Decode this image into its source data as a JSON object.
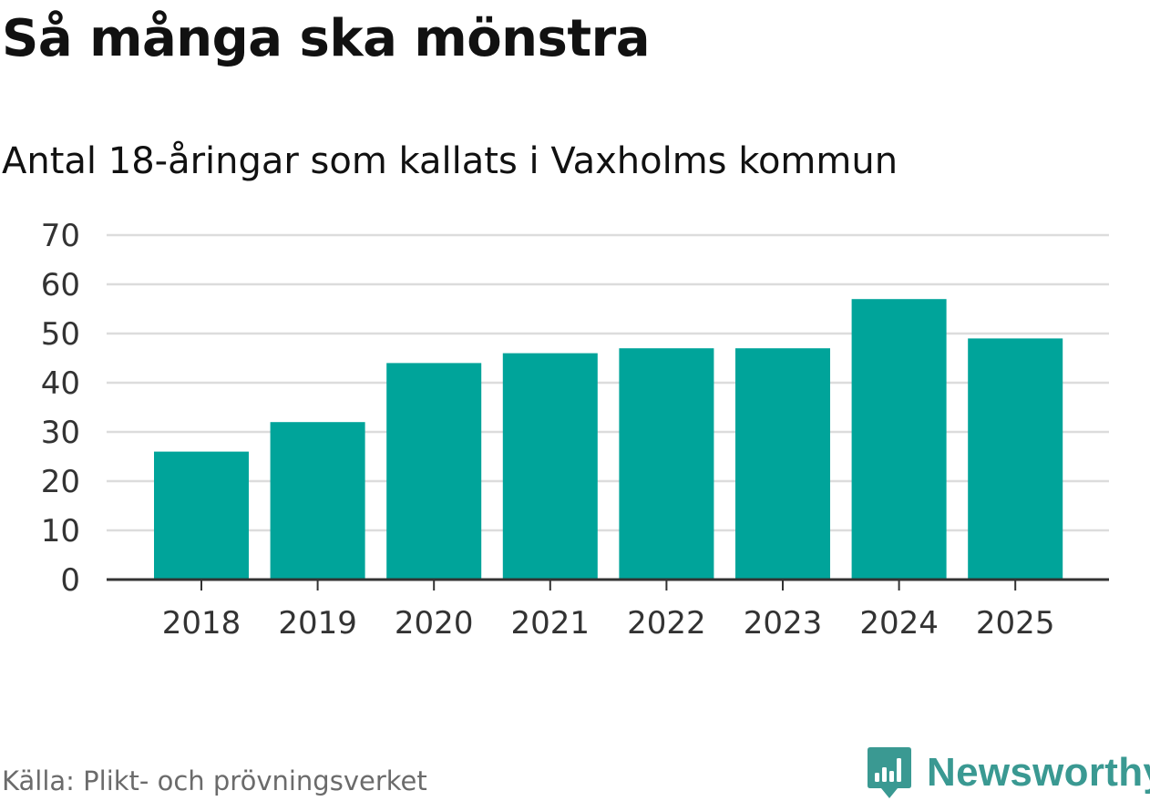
{
  "title": "Så många ska mönstra",
  "subtitle": "Antal 18-åringar som kallats i Vaxholms kommun",
  "source": "Källa: Plikt- och prövningsverket",
  "brand": {
    "name": "Newsworthy",
    "icon": "newsworthy-logo-icon",
    "color": "#3a9992"
  },
  "colors": {
    "bar": "#00a49a",
    "grid": "#dcdcdc",
    "axis": "#333333"
  },
  "chart_data": {
    "type": "bar",
    "title": "Så många ska mönstra",
    "subtitle": "Antal 18-åringar som kallats i Vaxholms kommun",
    "xlabel": "",
    "ylabel": "",
    "categories": [
      "2018",
      "2019",
      "2020",
      "2021",
      "2022",
      "2023",
      "2024",
      "2025"
    ],
    "values": [
      26,
      32,
      44,
      46,
      47,
      47,
      57,
      49
    ],
    "ylim": [
      0,
      70
    ],
    "yticks": [
      0,
      10,
      20,
      30,
      40,
      50,
      60,
      70
    ],
    "grid": true,
    "legend": "none"
  }
}
